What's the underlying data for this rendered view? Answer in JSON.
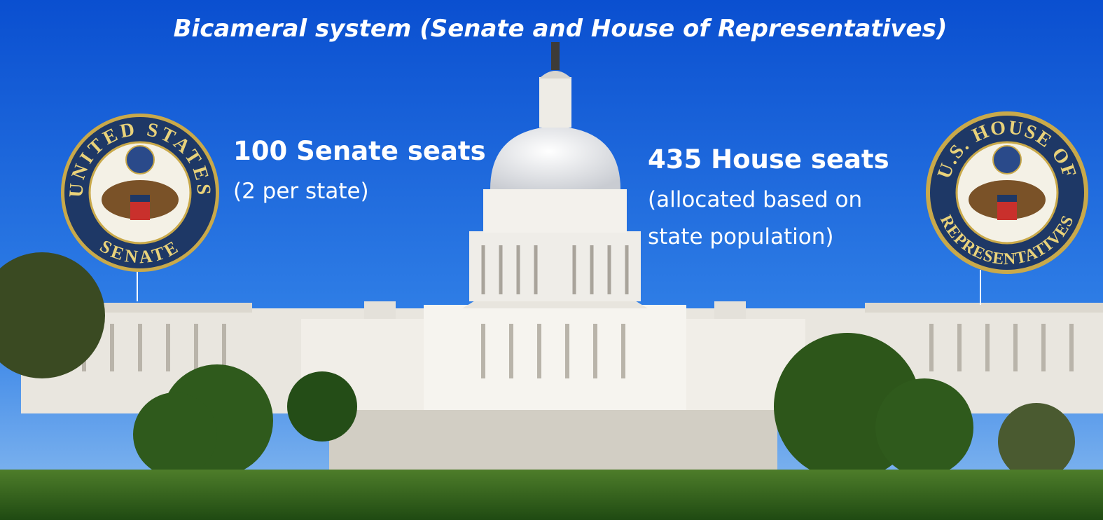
{
  "title": "Bicameral system (Senate and House of Representatives)",
  "senate": {
    "heading": "100 Senate seats",
    "note": "(2 per state)",
    "seal": {
      "top": "UNITED STATES",
      "bottom": "SENATE"
    }
  },
  "house": {
    "heading": "435 House seats",
    "note_lines": [
      "(allocated based on",
      "state population)"
    ],
    "seal": {
      "top": "U.S. HOUSE OF",
      "bottom": "REPRESENTATIVES"
    }
  }
}
